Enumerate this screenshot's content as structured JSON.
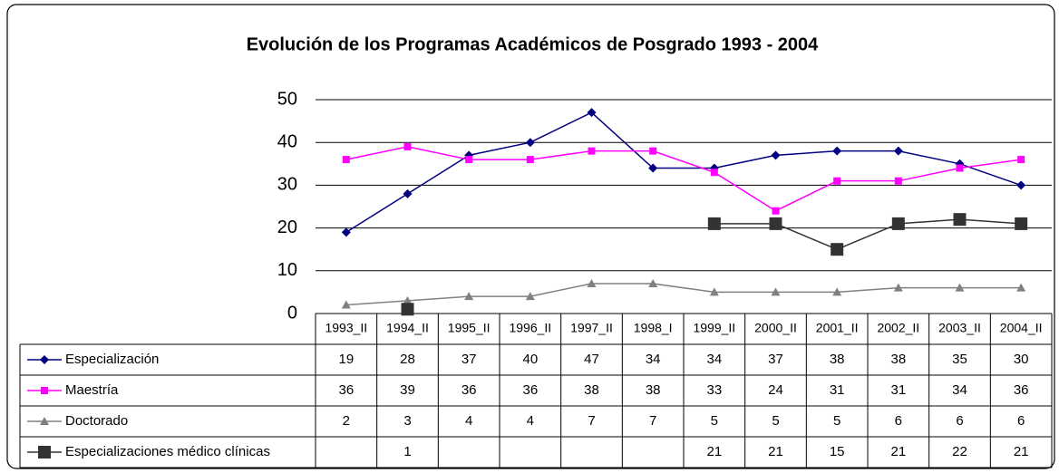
{
  "chart_data": {
    "type": "line",
    "title": "Evolución de los Programas Académicos de Posgrado 1993 - 2004",
    "categories": [
      "1993_II",
      "1994_II",
      "1995_II",
      "1996_II",
      "1997_II",
      "1998_I",
      "1999_II",
      "2000_II",
      "2001_II",
      "2002_II",
      "2003_II",
      "2004_II"
    ],
    "series": [
      {
        "name": "Especialización",
        "color": "#000080",
        "marker": "diamond",
        "values": [
          19,
          28,
          37,
          40,
          47,
          34,
          34,
          37,
          38,
          38,
          35,
          30
        ]
      },
      {
        "name": "Maestría",
        "color": "#ff00ff",
        "marker": "square",
        "values": [
          36,
          39,
          36,
          36,
          38,
          38,
          33,
          24,
          31,
          31,
          34,
          36
        ]
      },
      {
        "name": "Doctorado",
        "color": "#808080",
        "marker": "triangle",
        "values": [
          2,
          3,
          4,
          4,
          7,
          7,
          5,
          5,
          5,
          6,
          6,
          6
        ]
      },
      {
        "name": "Especializaciones médico clínicas",
        "color": "#333333",
        "marker": "bigsquare",
        "values": [
          null,
          1,
          null,
          null,
          null,
          null,
          21,
          21,
          15,
          21,
          22,
          21
        ]
      }
    ],
    "ylim": [
      0,
      50
    ],
    "yticks": [
      0,
      10,
      20,
      30,
      40,
      50
    ],
    "grid": true
  }
}
